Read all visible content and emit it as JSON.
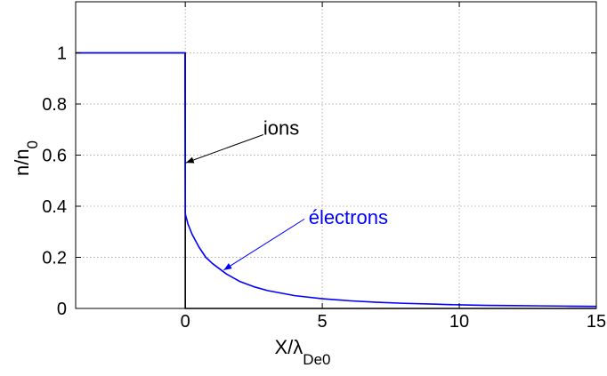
{
  "chart_data": {
    "type": "line",
    "xlabel": "X/λ",
    "xlabel_sub": "De0",
    "ylabel": "n/n",
    "ylabel_sub": "0",
    "xlim": [
      -4,
      15
    ],
    "ylim": [
      0,
      1.2
    ],
    "grid": true,
    "xticks": [
      {
        "value": 0,
        "label": "0"
      },
      {
        "value": 5,
        "label": "5"
      },
      {
        "value": 10,
        "label": "10"
      },
      {
        "value": 15,
        "label": "15"
      }
    ],
    "yticks": [
      {
        "value": 0,
        "label": "0"
      },
      {
        "value": 0.2,
        "label": "0.2"
      },
      {
        "value": 0.4,
        "label": "0.4"
      },
      {
        "value": 0.6,
        "label": "0.6"
      },
      {
        "value": 0.8,
        "label": "0.8"
      },
      {
        "value": 1,
        "label": "1"
      }
    ],
    "series": [
      {
        "name": "ions",
        "color": "#000000",
        "x": [
          -4,
          -0.01,
          0,
          0,
          15
        ],
        "y": [
          1,
          1,
          1,
          0,
          0
        ]
      },
      {
        "name": "électrons",
        "color": "#0000ff",
        "x": [
          -4,
          -0.01,
          -0.01,
          0,
          0.1,
          0.25,
          0.5,
          0.75,
          1,
          1.5,
          2,
          2.5,
          3,
          4,
          5,
          6,
          7,
          8,
          9,
          10,
          11,
          12,
          13,
          14,
          15
        ],
        "y": [
          1,
          1,
          0.85,
          0.37,
          0.33,
          0.29,
          0.24,
          0.2,
          0.175,
          0.135,
          0.105,
          0.085,
          0.07,
          0.05,
          0.038,
          0.03,
          0.024,
          0.02,
          0.017,
          0.014,
          0.012,
          0.011,
          0.01,
          0.009,
          0.008
        ]
      }
    ],
    "annotations": [
      {
        "text": "ions",
        "color": "#000000",
        "text_x": 2.85,
        "text_y": 0.68,
        "arrow_from": [
          2.85,
          0.68
        ],
        "arrow_to": [
          0.02,
          0.57
        ]
      },
      {
        "text": "électrons",
        "color": "#0000ff",
        "text_x": 4.5,
        "text_y": 0.33,
        "arrow_from": [
          4.35,
          0.35
        ],
        "arrow_to": [
          1.4,
          0.15
        ]
      }
    ]
  }
}
